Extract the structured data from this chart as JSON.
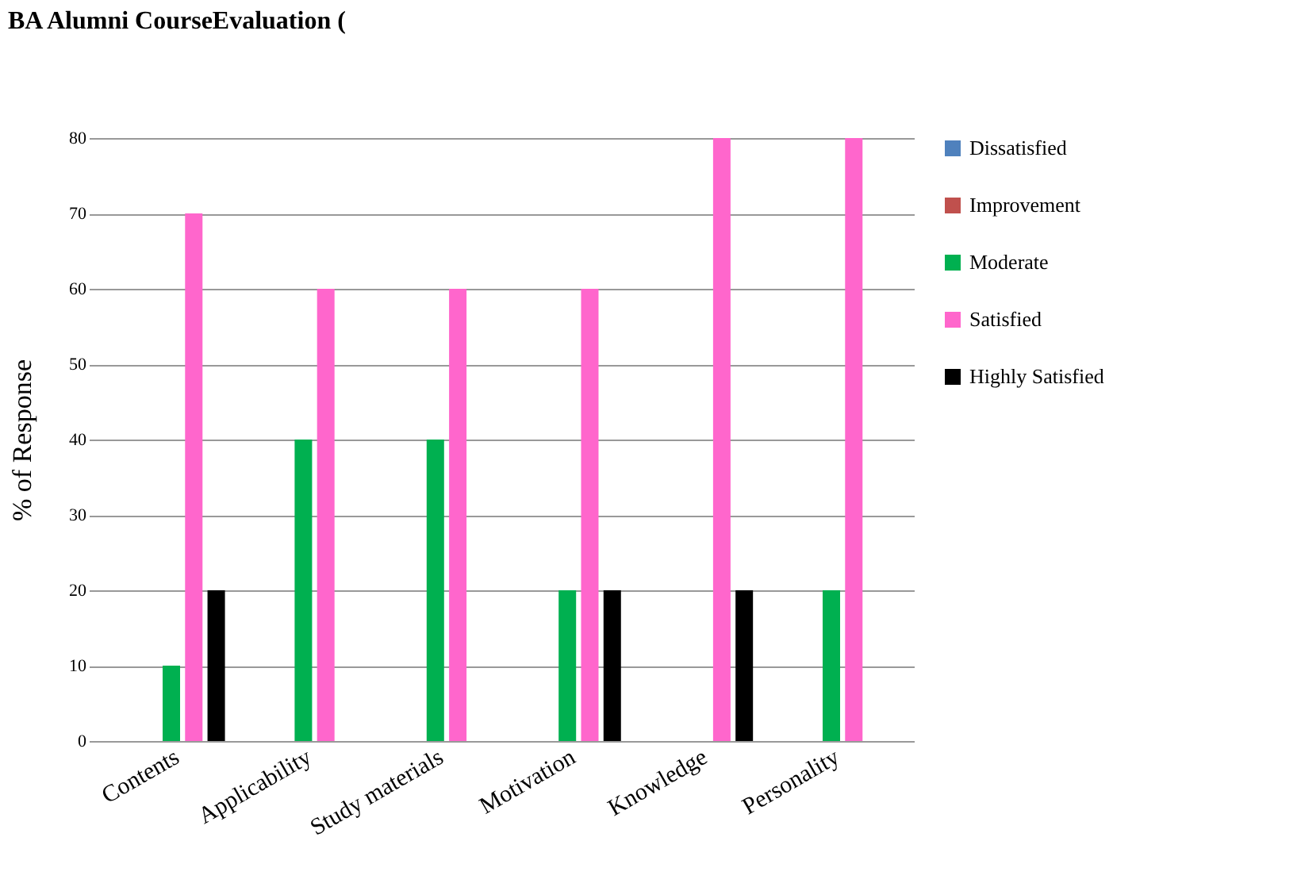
{
  "chart_data": {
    "type": "bar",
    "title": "BA Alumni  CourseEvaluation (",
    "ylabel": "% of Response",
    "categories": [
      "Contents",
      "Applicability",
      "Study materials",
      "Motivation",
      "Knowledge",
      "Personality"
    ],
    "series": [
      {
        "name": "Dissatisfied",
        "color": "#4f81bd",
        "values": [
          0,
          0,
          0,
          0,
          0,
          0
        ]
      },
      {
        "name": "Improvement",
        "color": "#c0504d",
        "values": [
          0,
          0,
          0,
          0,
          0,
          0
        ]
      },
      {
        "name": "Moderate",
        "color": "#00b050",
        "values": [
          10,
          40,
          40,
          20,
          0,
          20
        ]
      },
      {
        "name": "Satisfied",
        "color": "#ff66cc",
        "values": [
          70,
          60,
          60,
          60,
          80,
          80
        ]
      },
      {
        "name": "Highly Satisfied",
        "color": "#000000",
        "values": [
          20,
          0,
          0,
          20,
          20,
          0
        ]
      }
    ],
    "ylim": [
      0,
      80
    ],
    "yticks": [
      0,
      10,
      20,
      30,
      40,
      50,
      60,
      70,
      80
    ],
    "grid": "y",
    "legend": "right"
  }
}
